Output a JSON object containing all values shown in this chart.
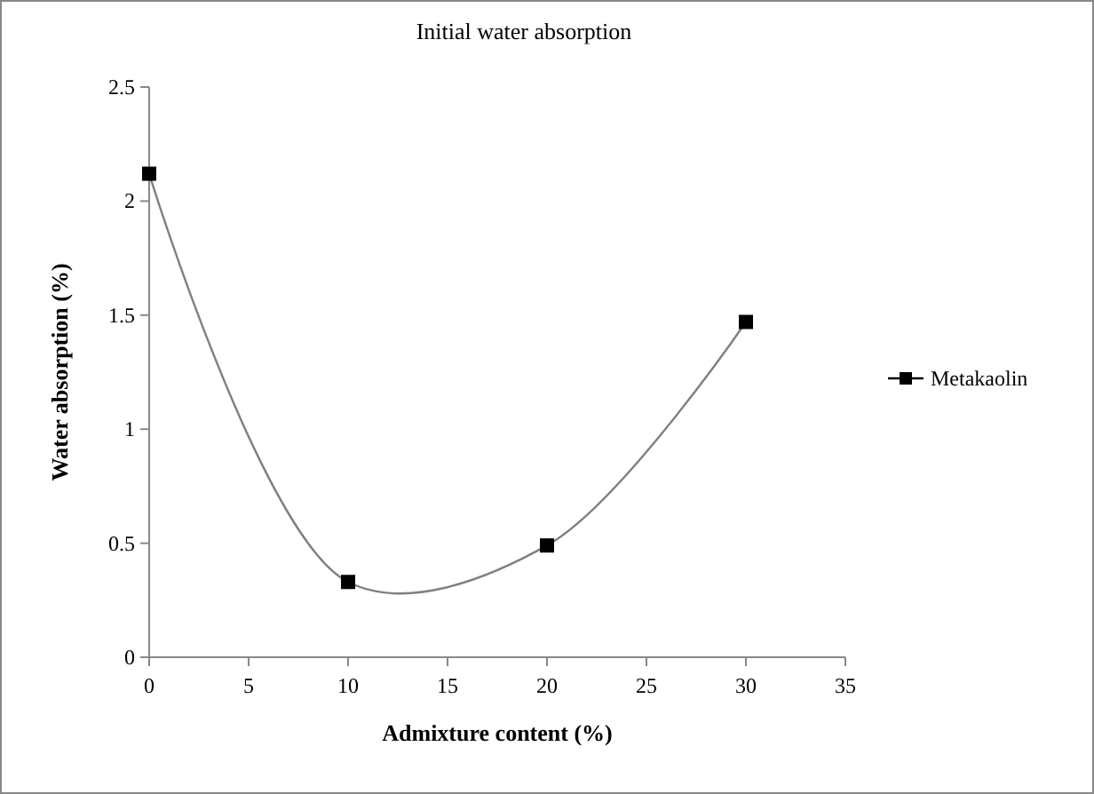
{
  "chart_data": {
    "type": "line",
    "title": "Initial water absorption",
    "xlabel": "Admixture content (%)",
    "ylabel": "Water absorption (%)",
    "x": [
      0,
      10,
      20,
      30
    ],
    "series": [
      {
        "name": "Metakaolin",
        "color": "#000000",
        "values": [
          2.12,
          0.33,
          0.49,
          1.47
        ]
      }
    ],
    "xlim": [
      0,
      35
    ],
    "xticks": [
      0,
      5,
      10,
      15,
      20,
      25,
      30,
      35
    ],
    "ylim": [
      0,
      2.5
    ],
    "yticks": [
      0,
      0.5,
      1,
      1.5,
      2,
      2.5
    ],
    "marker": "square",
    "legend": "right",
    "grid": false,
    "line_style": "solid"
  }
}
